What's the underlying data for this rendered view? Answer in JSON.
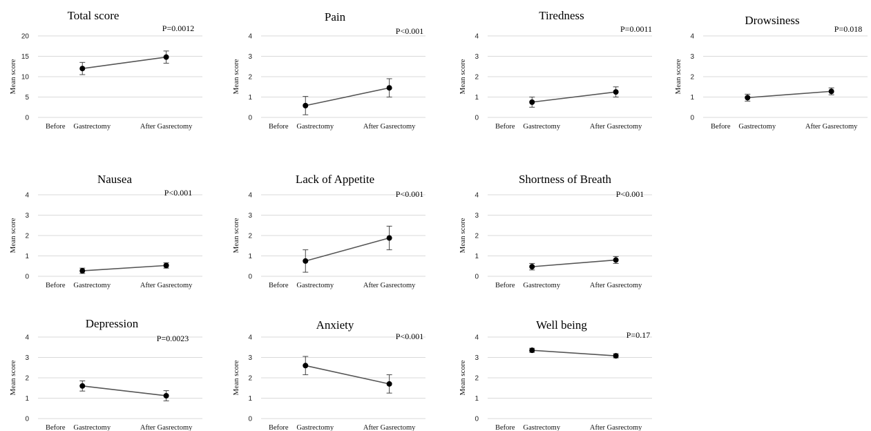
{
  "chart_data": [
    {
      "type": "line",
      "title": "Total score",
      "p_value": "P=0.0012",
      "ylabel": "Mean score",
      "ylim": [
        0,
        20
      ],
      "yticks": [
        "0",
        "5",
        "10",
        "15",
        "20"
      ],
      "xlabel_left": "Before",
      "categories": [
        "Gastrectomy",
        "After Gasrectomy"
      ],
      "values": [
        12.0,
        14.8
      ],
      "errors": [
        1.5,
        1.5
      ]
    },
    {
      "type": "line",
      "title": "Pain",
      "p_value": "P<0.001",
      "ylabel": "Mean score",
      "ylim": [
        0,
        4
      ],
      "yticks": [
        "0",
        "1",
        "2",
        "3",
        "4"
      ],
      "xlabel_left": "Before",
      "categories": [
        "Gastrectomy",
        "After Gasrectomy"
      ],
      "values": [
        0.58,
        1.45
      ],
      "errors": [
        0.45,
        0.45
      ]
    },
    {
      "type": "line",
      "title": "Tiredness",
      "p_value": "P=0.0011",
      "ylabel": "Mean score",
      "ylim": [
        0,
        4
      ],
      "yticks": [
        "0",
        "1",
        "2",
        "3",
        "4"
      ],
      "xlabel_left": "Before",
      "categories": [
        "Gastrectomy",
        "After Gasrectomy"
      ],
      "values": [
        0.75,
        1.25
      ],
      "errors": [
        0.25,
        0.25
      ]
    },
    {
      "type": "line",
      "title": "Drowsiness",
      "p_value": "P=0.018",
      "ylabel": "Mean score",
      "ylim": [
        0,
        4
      ],
      "yticks": [
        "0",
        "1",
        "2",
        "3",
        "4"
      ],
      "xlabel_left": "Before",
      "categories": [
        "Gastrectomy",
        "After Gasrectomy"
      ],
      "values": [
        0.97,
        1.28
      ],
      "errors": [
        0.17,
        0.17
      ]
    },
    {
      "type": "line",
      "title": "Nausea",
      "p_value": "P<0.001",
      "ylabel": "Mean score",
      "ylim": [
        0,
        4
      ],
      "yticks": [
        "0",
        "1",
        "2",
        "3",
        "4"
      ],
      "xlabel_left": "Before",
      "categories": [
        "Gastrectomy",
        "After Gasrectomy"
      ],
      "values": [
        0.27,
        0.53
      ],
      "errors": [
        0.13,
        0.13
      ]
    },
    {
      "type": "line",
      "title": "Lack of Appetite",
      "p_value": "P<0.001",
      "ylabel": "Mean score",
      "ylim": [
        0,
        4
      ],
      "yticks": [
        "0",
        "1",
        "2",
        "3",
        "4"
      ],
      "xlabel_left": "Before",
      "categories": [
        "Gastrectomy",
        "After Gasrectomy"
      ],
      "values": [
        0.75,
        1.88
      ],
      "errors": [
        0.55,
        0.58
      ]
    },
    {
      "type": "line",
      "title": "Shortness of Breath",
      "p_value": "P<0.001",
      "ylabel": "Mean score",
      "ylim": [
        0,
        4
      ],
      "yticks": [
        "0",
        "1",
        "2",
        "3",
        "4"
      ],
      "xlabel_left": "Before",
      "categories": [
        "Gastrectomy",
        "After Gasrectomy"
      ],
      "values": [
        0.47,
        0.8
      ],
      "errors": [
        0.16,
        0.17
      ]
    },
    {
      "type": "line",
      "title": "Depression",
      "p_value": "P=0.0023",
      "ylabel": "Mean score",
      "ylim": [
        0,
        4
      ],
      "yticks": [
        "0",
        "1",
        "2",
        "3",
        "4"
      ],
      "xlabel_left": "Before",
      "categories": [
        "Gastrectomy",
        "After Gasrectomy"
      ],
      "values": [
        1.6,
        1.12
      ],
      "errors": [
        0.25,
        0.25
      ]
    },
    {
      "type": "line",
      "title": "Anxiety",
      "p_value": "P<0.001",
      "ylabel": "Mean score",
      "ylim": [
        0,
        4
      ],
      "yticks": [
        "0",
        "1",
        "2",
        "3",
        "4"
      ],
      "xlabel_left": "Before",
      "categories": [
        "Gastrectomy",
        "After Gasrectomy"
      ],
      "values": [
        2.6,
        1.7
      ],
      "errors": [
        0.45,
        0.45
      ]
    },
    {
      "type": "line",
      "title": "Well being",
      "p_value": "P=0.17",
      "ylabel": "Mean score",
      "ylim": [
        0,
        4
      ],
      "yticks": [
        "0",
        "1",
        "2",
        "3",
        "4"
      ],
      "xlabel_left": "Before",
      "categories": [
        "Gastrectomy",
        "After Gasrectomy"
      ],
      "values": [
        3.35,
        3.08
      ],
      "errors": [
        0.1,
        0.1
      ]
    }
  ]
}
